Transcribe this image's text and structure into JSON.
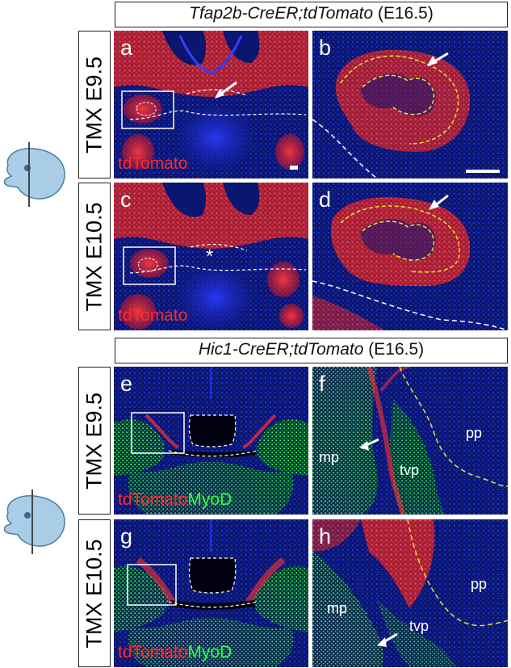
{
  "sections": [
    {
      "title_gene": "Tfap2b-CreER;tdTomato",
      "title_stage": "(E16.5)",
      "rows": [
        {
          "label": "TMX E9.5",
          "left_letter": "a",
          "right_letter": "b",
          "marker": "tdTomato"
        },
        {
          "label": "TMX E10.5",
          "left_letter": "c",
          "right_letter": "d",
          "marker": "tdTomato",
          "asterisk": "*"
        }
      ]
    },
    {
      "title_gene": "Hic1-CreER;tdTomato",
      "title_stage": "(E16.5)",
      "rows": [
        {
          "label": "TMX E9.5",
          "left_letter": "e",
          "right_letter": "f",
          "marker_red": "tdTomato",
          "marker_green": "MyoD",
          "tissues": [
            "mp",
            "tvp",
            "pp"
          ]
        },
        {
          "label": "TMX E10.5",
          "left_letter": "g",
          "right_letter": "h",
          "marker_red": "tdTomato",
          "marker_green": "MyoD",
          "tissues": [
            "mp",
            "tvp",
            "pp"
          ]
        }
      ]
    }
  ],
  "colors": {
    "background": "#08104a",
    "tdtomato": "#ff2a2a",
    "myod": "#33ff44",
    "dapi": "#2a3cff"
  }
}
